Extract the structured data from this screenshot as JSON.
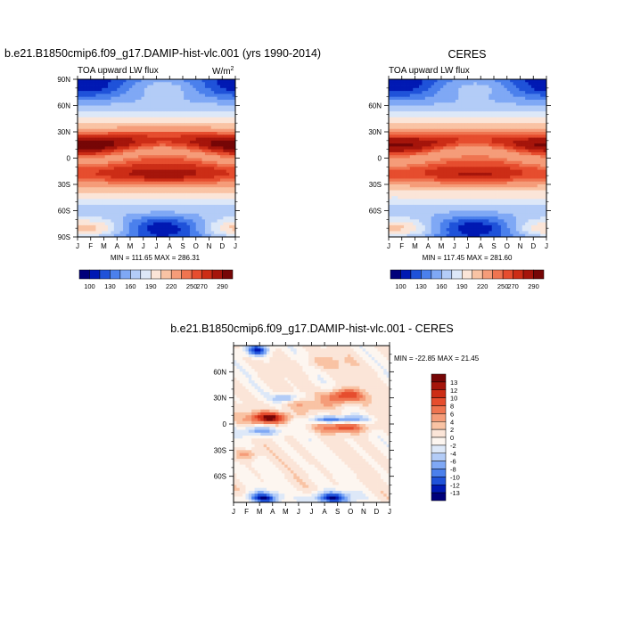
{
  "palette": {
    "absolute": [
      "#00007a",
      "#0019b3",
      "#1f52d9",
      "#4b80ec",
      "#7fa8f5",
      "#b3ccf7",
      "#dde8f8",
      "#fbe5d8",
      "#f9c3a4",
      "#f59c79",
      "#ef7450",
      "#e64d2e",
      "#cc2d16",
      "#a5150b",
      "#760606"
    ],
    "difference": [
      "#00007a",
      "#0019b3",
      "#1f52d9",
      "#4b80ec",
      "#7fa8f5",
      "#b3ccf7",
      "#dde8f8",
      "#fdf6f0",
      "#fbe5d8",
      "#f9c3a4",
      "#f59c79",
      "#ef7450",
      "#e64d2e",
      "#cc2d16",
      "#a5150b",
      "#760606"
    ]
  },
  "chart_data": [
    {
      "id": "model",
      "type": "heatmap",
      "title": "b.e21.B1850cmip6.f09_g17.DAMIP-hist-vlc.001 (yrs 1990-2014)",
      "left_label": "TOA upward LW flux",
      "units_label": "W/m",
      "units_exp": "2",
      "stats": "MIN = 111.65 MAX = 286.31",
      "min": 111.65,
      "max": 286.31,
      "xticks": [
        "J",
        "F",
        "M",
        "A",
        "M",
        "J",
        "J",
        "A",
        "S",
        "O",
        "N",
        "D",
        "J"
      ],
      "yticks": [
        "90N",
        "60N",
        "30N",
        "0",
        "30S",
        "60S",
        "90S"
      ],
      "ylim": [
        -90,
        90
      ],
      "colorbar_labels": [
        "100",
        "130",
        "160",
        "190",
        "220",
        "250",
        "270",
        "290"
      ],
      "colorbar_levels": [
        100,
        115,
        130,
        145,
        160,
        175,
        190,
        205,
        220,
        235,
        250,
        260,
        270,
        280,
        290
      ]
    },
    {
      "id": "obs",
      "type": "heatmap",
      "title": "CERES",
      "left_label": "TOA upward LW flux",
      "stats": "MIN = 117.45 MAX = 281.60",
      "min": 117.45,
      "max": 281.6,
      "xticks": [
        "J",
        "F",
        "M",
        "A",
        "M",
        "J",
        "J",
        "A",
        "S",
        "O",
        "N",
        "D",
        "J"
      ],
      "yticks": [
        "60N",
        "30N",
        "0",
        "30S",
        "60S"
      ],
      "ylim": [
        -90,
        90
      ],
      "colorbar_labels": [
        "100",
        "130",
        "160",
        "190",
        "220",
        "250",
        "270",
        "290"
      ],
      "colorbar_levels": [
        100,
        115,
        130,
        145,
        160,
        175,
        190,
        205,
        220,
        235,
        250,
        260,
        270,
        280,
        290
      ]
    },
    {
      "id": "diff",
      "type": "heatmap",
      "title": "b.e21.B1850cmip6.f09_g17.DAMIP-hist-vlc.001 - CERES",
      "stats": "MIN = -22.85 MAX =  21.45",
      "min": -22.85,
      "max": 21.45,
      "xticks": [
        "J",
        "F",
        "M",
        "A",
        "M",
        "J",
        "J",
        "A",
        "S",
        "O",
        "N",
        "D",
        "J"
      ],
      "yticks": [
        "60N",
        "30N",
        "0",
        "30S",
        "60S"
      ],
      "ylim": [
        -90,
        90
      ],
      "colorbar_labels": [
        "13",
        "12",
        "10",
        "8",
        "6",
        "4",
        "2",
        "0",
        "-2",
        "-4",
        "-6",
        "-8",
        "-10",
        "-12",
        "-13"
      ],
      "colorbar_levels": [
        -13,
        -12,
        -10,
        -8,
        -6,
        -4,
        -2,
        0,
        2,
        4,
        6,
        8,
        10,
        12,
        13
      ]
    }
  ]
}
